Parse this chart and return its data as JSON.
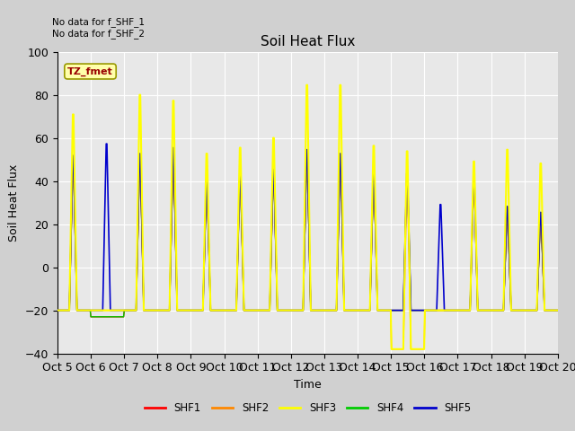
{
  "title": "Soil Heat Flux",
  "ylabel": "Soil Heat Flux",
  "xlabel": "Time",
  "ylim": [
    -40,
    100
  ],
  "annotation_text": "No data for f_SHF_1\nNo data for f_SHF_2",
  "tz_label": "TZ_fmet",
  "xtick_labels": [
    "Oct 5",
    "Oct 6",
    "Oct 7",
    "Oct 8",
    "Oct 9",
    "Oct 10",
    "Oct 11",
    "Oct 12",
    "Oct 13",
    "Oct 14",
    "Oct 15",
    "Oct 16",
    "Oct 17",
    "Oct 18",
    "Oct 19",
    "Oct 20"
  ],
  "legend_labels": [
    "SHF1",
    "SHF2",
    "SHF3",
    "SHF4",
    "SHF5"
  ],
  "legend_colors": [
    "#ff0000",
    "#ff8800",
    "#ffff00",
    "#00cc00",
    "#0000cc"
  ],
  "background_color": "#e8e8e8",
  "yticks": [
    -40,
    -20,
    0,
    20,
    40,
    60,
    80,
    100
  ],
  "shf3_peaks": [
    80,
    0,
    90,
    87,
    60,
    63,
    68,
    95,
    95,
    64,
    63,
    0,
    56,
    62,
    55
  ],
  "shf5_peaks": [
    59,
    65,
    60,
    63,
    45,
    49,
    52,
    62,
    60,
    50,
    50,
    34,
    49,
    33,
    30
  ],
  "shf1_peaks": [
    55,
    0,
    58,
    57,
    44,
    48,
    50,
    58,
    58,
    48,
    48,
    0,
    45,
    30,
    28
  ],
  "shf4_peaks": [
    54,
    0,
    57,
    56,
    44,
    47,
    49,
    57,
    57,
    47,
    47,
    0,
    44,
    29,
    27
  ],
  "shf2_peaks": [
    53,
    0,
    57,
    56,
    43,
    47,
    49,
    57,
    57,
    46,
    46,
    0,
    43,
    28,
    26
  ],
  "night_val_shf3": [
    -20,
    -20,
    -20,
    -20,
    -20,
    -20,
    -20,
    -20,
    -20,
    -20,
    -38,
    -20,
    -20,
    -20,
    -20
  ],
  "night_val_shf2": [
    -20,
    -20,
    -20,
    -20,
    -20,
    -20,
    -20,
    -20,
    -20,
    -20,
    -38,
    -20,
    -20,
    -20,
    -20
  ],
  "night_val_others": [
    -20,
    -20,
    -20,
    -20,
    -20,
    -20,
    -20,
    -20,
    -20,
    -20,
    -20,
    -20,
    -20,
    -20,
    -20
  ]
}
